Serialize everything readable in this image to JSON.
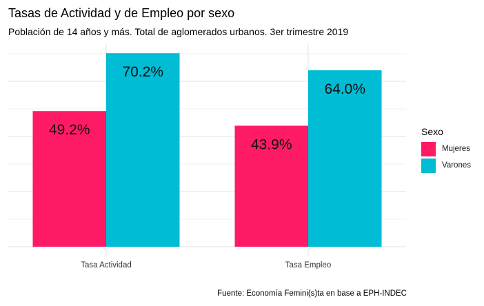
{
  "chart_data": {
    "type": "bar",
    "title": "Tasas de Actividad y de Empleo por sexo",
    "subtitle": "Población de 14 años y más. Total de aglomerados urbanos. 3er trimestre 2019",
    "caption": "Fuente: Economía Femini(s)ta en base a EPH-INDEC",
    "xlabel": "",
    "ylabel": "",
    "categories": [
      "Tasa Actividad",
      "Tasa Empleo"
    ],
    "series": [
      {
        "name": "Mujeres",
        "color": "#FF1A66",
        "values": [
          49.2,
          43.9
        ],
        "labels": [
          "49.2%",
          "43.9%"
        ]
      },
      {
        "name": "Varones",
        "color": "#00BCD4",
        "values": [
          70.2,
          64.0
        ],
        "labels": [
          "70.2%",
          "64.0%"
        ]
      }
    ],
    "ylim": [
      0,
      73
    ],
    "y_major_gridlines": [
      0,
      20,
      40,
      60
    ],
    "y_minor_gridlines": [
      10,
      30,
      50,
      70
    ],
    "y_tick_labels_shown": false,
    "grid": true,
    "legend": {
      "title": "Sexo",
      "placement": "right",
      "entries": [
        "Mujeres",
        "Varones"
      ]
    }
  }
}
